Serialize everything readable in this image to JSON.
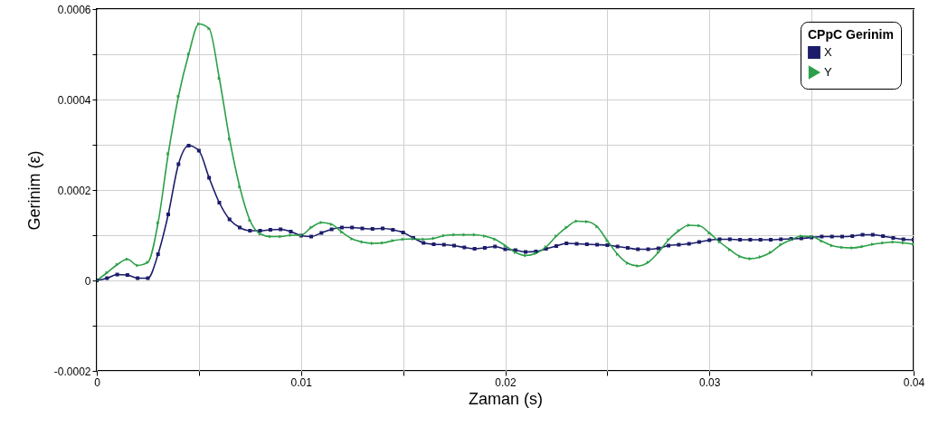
{
  "chart_data": {
    "type": "line",
    "xlabel": "Zaman (s)",
    "ylabel": "Gerinim (ε)",
    "legend_title": "CPpC Gerinim",
    "legend": "top right",
    "grid": true,
    "x": [
      0,
      0.0005,
      0.001,
      0.0015,
      0.002,
      0.0025,
      0.003,
      0.0035,
      0.004,
      0.0045,
      0.005,
      0.0055,
      0.006,
      0.0065,
      0.007,
      0.0075,
      0.008,
      0.0085,
      0.009,
      0.0095,
      0.01,
      0.0105,
      0.011,
      0.0115,
      0.012,
      0.0125,
      0.013,
      0.0135,
      0.014,
      0.0145,
      0.015,
      0.0155,
      0.016,
      0.0165,
      0.017,
      0.0175,
      0.018,
      0.0185,
      0.019,
      0.0195,
      0.02,
      0.0205,
      0.021,
      0.0215,
      0.022,
      0.0225,
      0.023,
      0.0235,
      0.024,
      0.0245,
      0.025,
      0.0255,
      0.026,
      0.0265,
      0.027,
      0.0275,
      0.028,
      0.0285,
      0.029,
      0.0295,
      0.03,
      0.0305,
      0.031,
      0.0315,
      0.032,
      0.0325,
      0.033,
      0.0335,
      0.034,
      0.0345,
      0.035,
      0.0355,
      0.036,
      0.0365,
      0.037,
      0.0375,
      0.038,
      0.0385,
      0.039,
      0.0395,
      0.04
    ],
    "series": [
      {
        "name": "X",
        "color": "#1c1c6b",
        "marker": "square",
        "values": [
          0,
          5e-06,
          1.3e-05,
          1.2e-05,
          5e-06,
          5e-06,
          5.8e-05,
          0.000146,
          0.000257,
          0.000298,
          0.000287,
          0.000227,
          0.000172,
          0.000135,
          0.000117,
          0.00011,
          0.00011,
          0.000112,
          0.000113,
          0.000108,
          9.9e-05,
          9.7e-05,
          0.000105,
          0.000113,
          0.000117,
          0.000117,
          0.000115,
          0.000114,
          0.000115,
          0.000112,
          0.000106,
          9.4e-05,
          8.3e-05,
          8e-05,
          7.9e-05,
          7.7e-05,
          7.3e-05,
          7e-05,
          7.2e-05,
          7.5e-05,
          6.9e-05,
          6.7e-05,
          6.3e-05,
          6.4e-05,
          7e-05,
          7.6e-05,
          8.2e-05,
          8.1e-05,
          8e-05,
          7.9e-05,
          7.8e-05,
          7.5e-05,
          7.2e-05,
          6.9e-05,
          6.9e-05,
          7.1e-05,
          7.7e-05,
          7.9e-05,
          8.1e-05,
          8.5e-05,
          8.9e-05,
          9.1e-05,
          9.1e-05,
          9e-05,
          9e-05,
          9e-05,
          9e-05,
          9.1e-05,
          9.2e-05,
          9.3e-05,
          9.5e-05,
          9.7e-05,
          9.7e-05,
          9.7e-05,
          9.8e-05,
          0.000101,
          0.000101,
          9.8e-05,
          9.4e-05,
          9.1e-05,
          9e-05
        ]
      },
      {
        "name": "Y",
        "color": "#2ca048",
        "marker": "triangle",
        "values": [
          0,
          1.7e-05,
          3.5e-05,
          4.7e-05,
          3.3e-05,
          4e-05,
          0.000127,
          0.00028,
          0.000407,
          0.0005,
          0.000567,
          0.000557,
          0.000447,
          0.000313,
          0.000207,
          0.000133,
          0.000103,
          9.7e-05,
          9.7e-05,
          0.0001,
          0.0001,
          0.000117,
          0.000128,
          0.000124,
          0.000107,
          9.2e-05,
          8.5e-05,
          8.2e-05,
          8.3e-05,
          8.8e-05,
          9.1e-05,
          9.2e-05,
          9.1e-05,
          9.3e-05,
          9.9e-05,
          0.000101,
          0.000101,
          0.000101,
          9.8e-05,
          9.1e-05,
          7.7e-05,
          6.2e-05,
          5.5e-05,
          6e-05,
          7.4e-05,
          9.8e-05,
          0.000117,
          0.000131,
          0.00013,
          0.000119,
          8.8e-05,
          5.8e-05,
          3.8e-05,
          3.2e-05,
          4e-05,
          6.2e-05,
          9e-05,
          0.00011,
          0.000122,
          0.000121,
          0.000105,
          8.5e-05,
          6.8e-05,
          5.3e-05,
          4.8e-05,
          5.2e-05,
          6.2e-05,
          7.9e-05,
          9e-05,
          9.8e-05,
          9.7e-05,
          8.7e-05,
          7.7e-05,
          7.3e-05,
          7.2e-05,
          7.5e-05,
          8e-05,
          8.3e-05,
          8.5e-05,
          8.3e-05,
          8e-05
        ]
      }
    ],
    "xlim": [
      0,
      0.04
    ],
    "xticks": [
      0,
      {
        "value": 0.005,
        "label": null
      },
      0.01,
      {
        "value": 0.015,
        "label": null
      },
      0.02,
      {
        "value": 0.025,
        "label": null
      },
      0.03,
      {
        "value": 0.035,
        "label": null
      },
      0.04
    ],
    "ylim": [
      -0.0002,
      0.0006
    ],
    "yticks": [
      -0.0002,
      {
        "value": -0.0001,
        "label": null
      },
      0,
      {
        "value": 0.0001,
        "label": null
      },
      0.0002,
      {
        "value": 0.0003,
        "label": null
      },
      0.0004,
      {
        "value": 0.0005,
        "label": null
      },
      0.0006
    ]
  }
}
